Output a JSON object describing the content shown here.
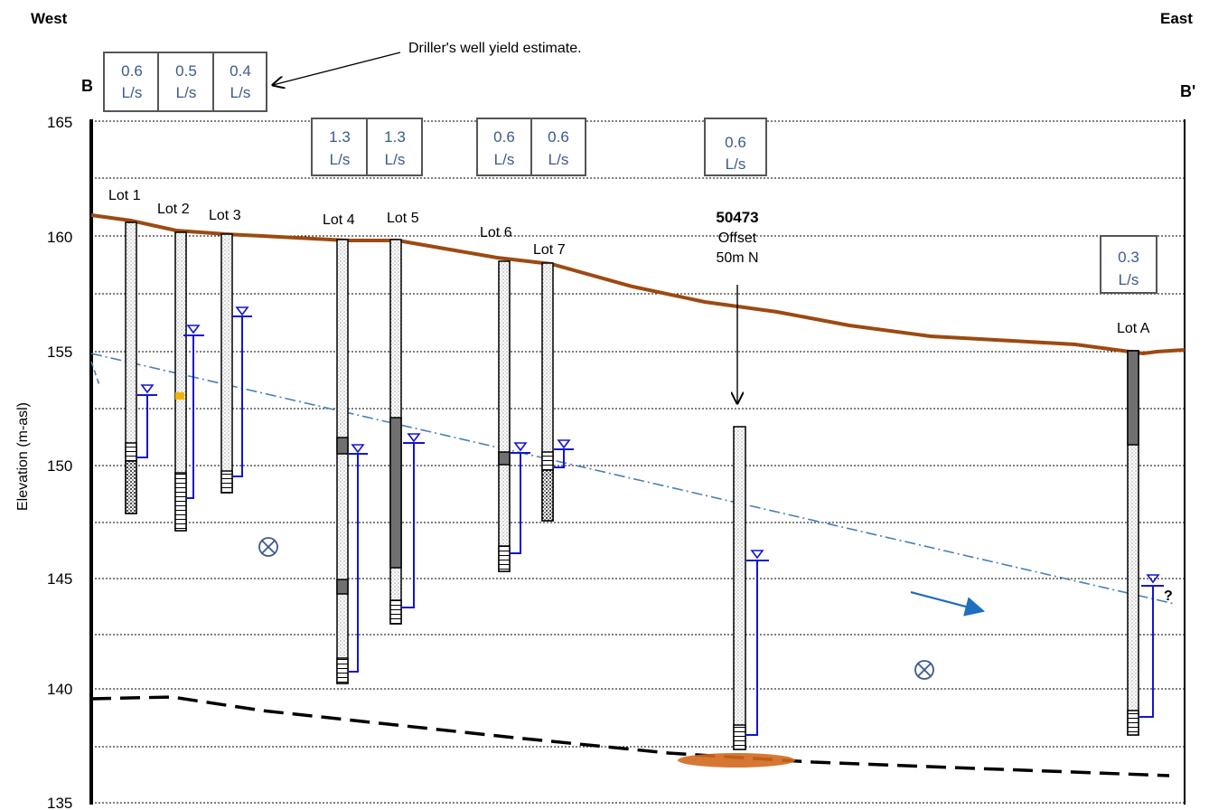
{
  "header": {
    "west": "West",
    "east": "East",
    "b_start": "B",
    "b_end": "B'"
  },
  "annotation": "Driller's  well yield estimate.",
  "axis": {
    "ylabel": "Elevation (m-asl)",
    "ticks": [
      "165",
      "160",
      "155",
      "150",
      "145",
      "140",
      "135"
    ]
  },
  "yield_boxes": [
    {
      "id": "lot1",
      "value": "0.6",
      "unit": "L/s"
    },
    {
      "id": "lot2",
      "value": "0.5",
      "unit": "L/s"
    },
    {
      "id": "lot3",
      "value": "0.4",
      "unit": "L/s"
    },
    {
      "id": "lot4",
      "value": "1.3",
      "unit": "L/s"
    },
    {
      "id": "lot5",
      "value": "1.3",
      "unit": "L/s"
    },
    {
      "id": "lot6",
      "value": "0.6",
      "unit": "L/s"
    },
    {
      "id": "lot7",
      "value": "0.6",
      "unit": "L/s"
    },
    {
      "id": "well50473",
      "value": "0.6",
      "unit": "L/s"
    },
    {
      "id": "lotA",
      "value": "0.3",
      "unit": "L/s"
    }
  ],
  "wells": {
    "lot1": "Lot 1",
    "lot2": "Lot 2",
    "lot3": "Lot 3",
    "lot4": "Lot 4",
    "lot5": "Lot 5",
    "lot6": "Lot 6",
    "lot7": "Lot 7",
    "lotA": "Lot A",
    "offset_id": "50473",
    "offset_line1": "Offset",
    "offset_line2": "50m N"
  },
  "question_mark": "?",
  "colors": {
    "ground_surface": "#9c4a12",
    "water_level": "#1414d2",
    "potentiometric": "#4a7fb5",
    "flow_arrow": "#1e6fc0",
    "yield_text": "#3c5a8c",
    "bedrock_contact": "#000000",
    "orange_lens": "#d2691e"
  },
  "icons": [
    "flow-into-page-symbol",
    "flow-direction-arrow",
    "water-level-triangle"
  ]
}
